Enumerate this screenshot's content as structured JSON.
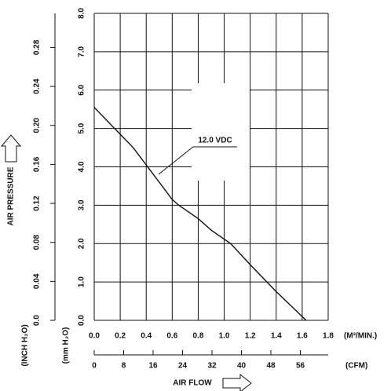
{
  "chart_data": {
    "type": "line",
    "y_label": "AIR PRESSURE",
    "y_unit": "(mm H₂O)",
    "y2_unit": "(INCH H₂O)",
    "x_label": "AIR FLOW",
    "x_unit": "(M³/MIN.)",
    "x2_unit": "(CFM)",
    "x": [
      0,
      0.2,
      0.3,
      0.4,
      0.5,
      0.6,
      0.65,
      0.8,
      0.9,
      1.05,
      1.2,
      1.4,
      1.63
    ],
    "series": [
      {
        "name": "12.0 VDC",
        "color": "#111111",
        "values": [
          5.55,
          4.85,
          4.5,
          4.05,
          3.6,
          3.15,
          3.0,
          2.65,
          2.35,
          2.0,
          1.45,
          0.75,
          0.0
        ]
      }
    ],
    "xlim": [
      0,
      1.8
    ],
    "xticks": [
      {
        "value": 0,
        "label": "0.0"
      },
      0.2,
      0.4,
      0.6,
      0.8,
      {
        "value": 1,
        "label": "1.0"
      },
      1.2,
      1.4,
      1.6,
      1.8
    ],
    "ylim": [
      0,
      8
    ],
    "yticks": [
      {
        "value": 0,
        "label": "0.0"
      },
      {
        "value": 1,
        "label": "1.0"
      },
      {
        "value": 2,
        "label": "2.0"
      },
      {
        "value": 3,
        "label": "3.0"
      },
      {
        "value": 4,
        "label": "4.0"
      },
      {
        "value": 5,
        "label": "5.0"
      },
      {
        "value": 6,
        "label": "6.0"
      },
      {
        "value": 7,
        "label": "7.0"
      },
      {
        "value": 8,
        "label": "8.0"
      }
    ],
    "y2lim": [
      0,
      0.315
    ],
    "y2ticks": [
      {
        "value": 0,
        "label": "0.0"
      },
      0.04,
      0.08,
      0.12,
      0.16,
      {
        "value": 0.2,
        "label": "0.20"
      },
      0.24,
      0.28
    ],
    "x2lim": [
      0,
      63.57
    ],
    "x2ticks": [
      0,
      8,
      16,
      24,
      32,
      40,
      48,
      56
    ],
    "grid": true
  }
}
